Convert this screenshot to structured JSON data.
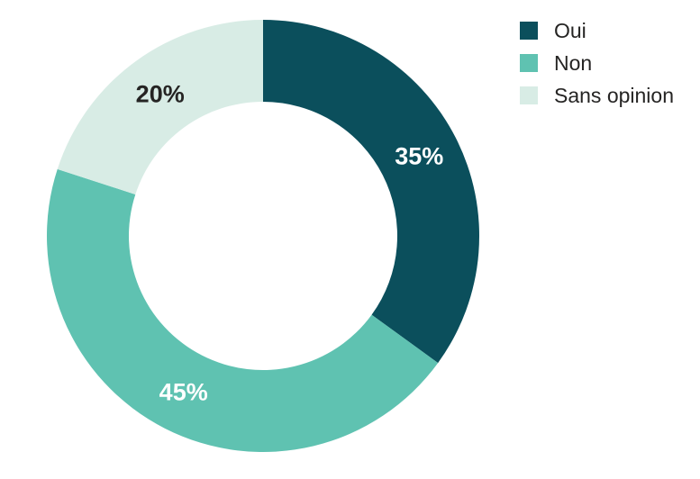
{
  "chart_data": {
    "type": "pie",
    "subtype": "donut",
    "title": "",
    "start_angle_deg": 0,
    "direction": "clockwise",
    "hole_ratio": 0.62,
    "background": "#ffffff",
    "legend_position": "right-top",
    "legend_text_color": "#252423",
    "series": [
      {
        "label": "Oui",
        "value": 35,
        "data_label": "35%",
        "color": "#0b4f5c",
        "data_label_color": "#ffffff"
      },
      {
        "label": "Non",
        "value": 45,
        "data_label": "45%",
        "color": "#5fc2b1",
        "data_label_color": "#ffffff"
      },
      {
        "label": "Sans opinion",
        "value": 20,
        "data_label": "20%",
        "color": "#d8ece5",
        "data_label_color": "#252423"
      }
    ]
  }
}
